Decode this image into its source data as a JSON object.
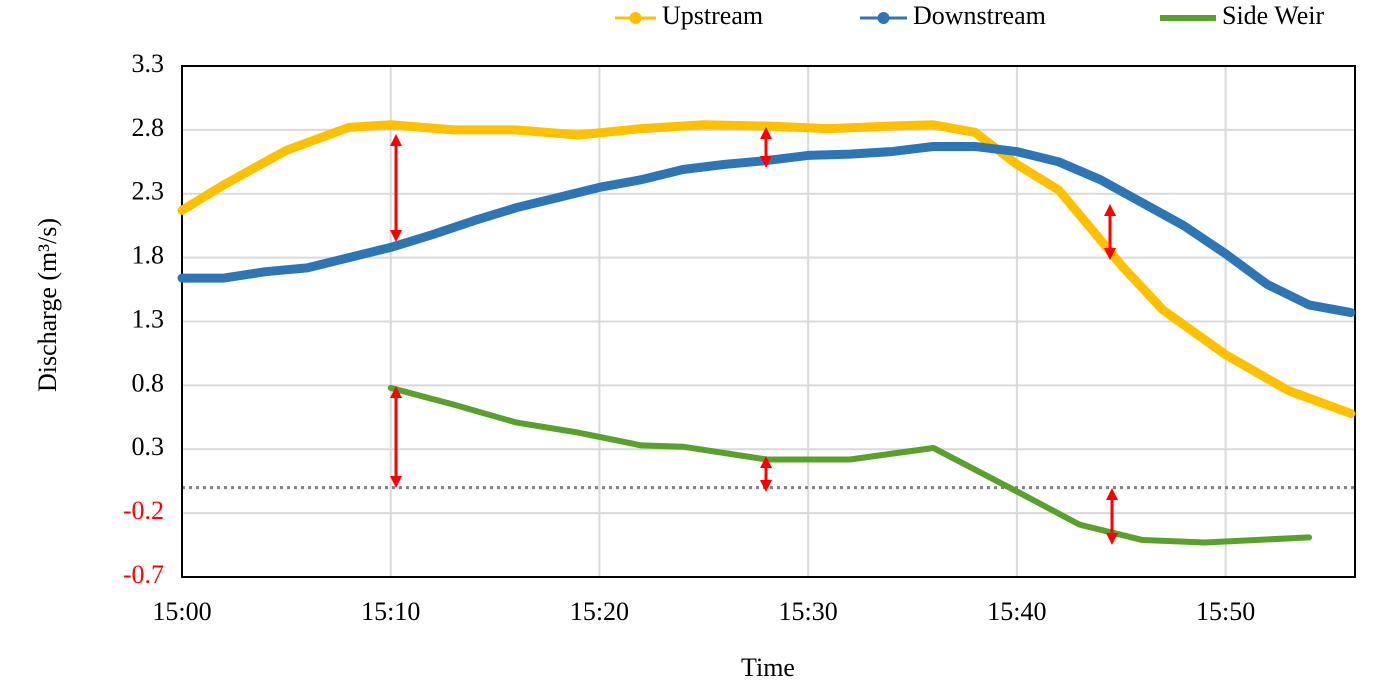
{
  "chart_data": {
    "type": "line",
    "x_label": "Time",
    "y_label": "Discharge (m³/s)",
    "xlim": [
      0,
      56.2
    ],
    "xticks": [
      {
        "value": 0,
        "label": "15:00"
      },
      {
        "value": 10,
        "label": "15:10"
      },
      {
        "value": 20,
        "label": "15:20"
      },
      {
        "value": 30,
        "label": "15:30"
      },
      {
        "value": 40,
        "label": "15:40"
      },
      {
        "value": 50,
        "label": "15:50"
      }
    ],
    "ylim": [
      -0.7,
      3.3
    ],
    "yticks": [
      -0.7,
      -0.2,
      0.3,
      0.8,
      1.3,
      1.8,
      2.3,
      2.8,
      3.3
    ],
    "negative_ytick_color": "#ff0000",
    "grid": true,
    "hline": 0,
    "legend": "top",
    "series": [
      {
        "name": "Upstream",
        "color": "#ffc000",
        "markers": true,
        "x": [
          0,
          2,
          5,
          8,
          10,
          13,
          16,
          19,
          22,
          25,
          28,
          31,
          34,
          36,
          38,
          40,
          42,
          44,
          45,
          47,
          50,
          53,
          56
        ],
        "values": [
          2.17,
          2.37,
          2.64,
          2.82,
          2.84,
          2.8,
          2.8,
          2.76,
          2.81,
          2.84,
          2.83,
          2.81,
          2.83,
          2.84,
          2.78,
          2.53,
          2.33,
          1.94,
          1.74,
          1.39,
          1.04,
          0.76,
          0.58
        ]
      },
      {
        "name": "Downstream",
        "color": "#2e75b6",
        "markers": true,
        "x": [
          0,
          2,
          4,
          6,
          8,
          10,
          12,
          14,
          16,
          18,
          20,
          22,
          24,
          26,
          28,
          30,
          32,
          34,
          36,
          38,
          40,
          42,
          44,
          46,
          48,
          50,
          52,
          54,
          56
        ],
        "values": [
          1.64,
          1.64,
          1.69,
          1.72,
          1.8,
          1.88,
          1.98,
          2.09,
          2.19,
          2.27,
          2.35,
          2.41,
          2.49,
          2.53,
          2.56,
          2.6,
          2.61,
          2.63,
          2.67,
          2.67,
          2.63,
          2.55,
          2.41,
          2.23,
          2.05,
          1.83,
          1.59,
          1.43,
          1.37
        ]
      },
      {
        "name": "Side Weir",
        "color": "#5aa02c",
        "markers": false,
        "x": [
          10,
          13,
          16,
          19,
          22,
          24,
          28,
          32,
          36,
          40,
          43,
          46,
          49,
          54
        ],
        "values": [
          0.78,
          0.65,
          0.51,
          0.43,
          0.33,
          0.32,
          0.22,
          0.22,
          0.31,
          -0.03,
          -0.29,
          -0.41,
          -0.43,
          -0.39
        ]
      }
    ]
  }
}
